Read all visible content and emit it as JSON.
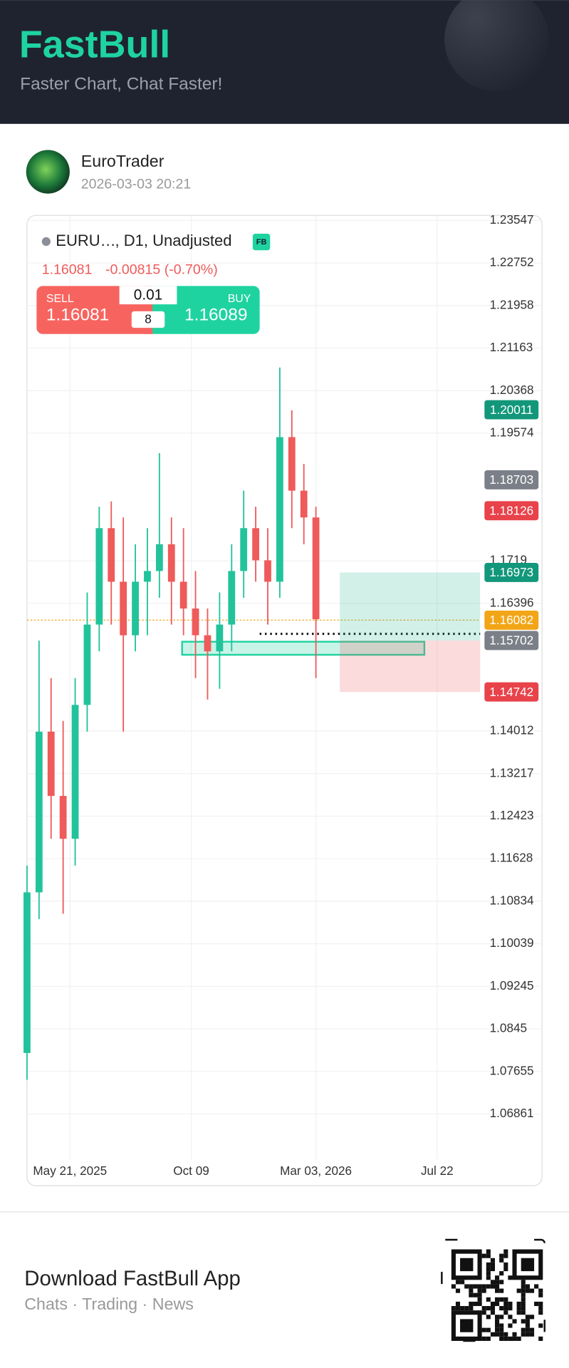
{
  "header": {
    "title": "FastBull",
    "subtitle": "Faster Chart, Chat Faster!"
  },
  "post": {
    "author": "EuroTrader",
    "time": "2026-03-03 20:21"
  },
  "chart_data": {
    "type": "candlestick",
    "symbol": "EURU…",
    "interval": ", D1, Unadjusted",
    "badge": "FB",
    "last_price": "1.16081",
    "change": "-0.00815 (-0.70%)",
    "trade": {
      "sell_label": "SELL",
      "sell_price": "1.16081",
      "lot": "0.01",
      "spread": "8",
      "buy_label": "BUY",
      "buy_price": "1.16089"
    },
    "x": [
      "2025-04-01",
      "2025-04-15",
      "2025-04-29",
      "2025-05-13",
      "2025-05-27",
      "2025-06-10",
      "2025-06-24",
      "2025-07-08",
      "2025-07-22",
      "2025-08-05",
      "2025-08-19",
      "2025-09-02",
      "2025-09-16",
      "2025-09-30",
      "2025-10-14",
      "2025-10-28",
      "2025-11-11",
      "2025-11-25",
      "2025-12-09",
      "2025-12-23",
      "2026-01-06",
      "2026-01-20",
      "2026-02-03",
      "2026-02-17",
      "2026-03-03"
    ],
    "open": [
      1.08,
      1.11,
      1.14,
      1.128,
      1.12,
      1.145,
      1.16,
      1.178,
      1.168,
      1.158,
      1.168,
      1.17,
      1.175,
      1.168,
      1.163,
      1.158,
      1.155,
      1.16,
      1.17,
      1.178,
      1.172,
      1.168,
      1.195,
      1.185,
      1.18
    ],
    "high": [
      1.115,
      1.157,
      1.15,
      1.142,
      1.15,
      1.166,
      1.182,
      1.183,
      1.18,
      1.175,
      1.178,
      1.192,
      1.18,
      1.178,
      1.17,
      1.163,
      1.166,
      1.175,
      1.185,
      1.182,
      1.178,
      1.208,
      1.2,
      1.19,
      1.182
    ],
    "low": [
      1.075,
      1.105,
      1.12,
      1.106,
      1.115,
      1.14,
      1.155,
      1.16,
      1.14,
      1.155,
      1.158,
      1.165,
      1.16,
      1.158,
      1.15,
      1.146,
      1.148,
      1.155,
      1.165,
      1.168,
      1.16,
      1.165,
      1.178,
      1.175,
      1.15
    ],
    "close": [
      1.11,
      1.14,
      1.128,
      1.12,
      1.145,
      1.16,
      1.178,
      1.168,
      1.158,
      1.168,
      1.17,
      1.175,
      1.168,
      1.163,
      1.158,
      1.155,
      1.16,
      1.17,
      1.178,
      1.172,
      1.168,
      1.195,
      1.185,
      1.18,
      1.161
    ],
    "up_color": "#22c39b",
    "down_color": "#ef5a5a",
    "xlim": [
      "2025-04-01",
      "2026-09-10"
    ],
    "xticks": [
      {
        "value": "2025-05-21",
        "label": "May 21, 2025"
      },
      {
        "value": "2025-10-09",
        "label": "Oct 09"
      },
      {
        "value": "2026-03-03",
        "label": "Mar 03, 2026"
      },
      {
        "value": "2026-07-22",
        "label": "Jul 22"
      }
    ],
    "ylim": [
      1.0601,
      1.2364
    ],
    "yticks": [
      1.23547,
      1.22752,
      1.21958,
      1.21163,
      1.20368,
      1.19574,
      1.1719,
      1.16396,
      1.14012,
      1.13217,
      1.12423,
      1.11628,
      1.10834,
      1.10039,
      1.09245,
      1.0845,
      1.07655,
      1.06861
    ],
    "grid": true,
    "price_tags": [
      {
        "value": 1.20011,
        "color": "#12977a"
      },
      {
        "value": 1.18703,
        "color": "#7b7f87"
      },
      {
        "value": 1.18126,
        "color": "#e8424a"
      },
      {
        "value": 1.16973,
        "color": "#12977a"
      },
      {
        "value": 1.16082,
        "color": "#f2a516"
      },
      {
        "value": 1.15702,
        "color": "#7b7f87"
      },
      {
        "value": 1.14742,
        "color": "#e8424a"
      }
    ]
  },
  "footer": {
    "title": "Download FastBull App",
    "subtitle": "Chats · Trading · News"
  }
}
